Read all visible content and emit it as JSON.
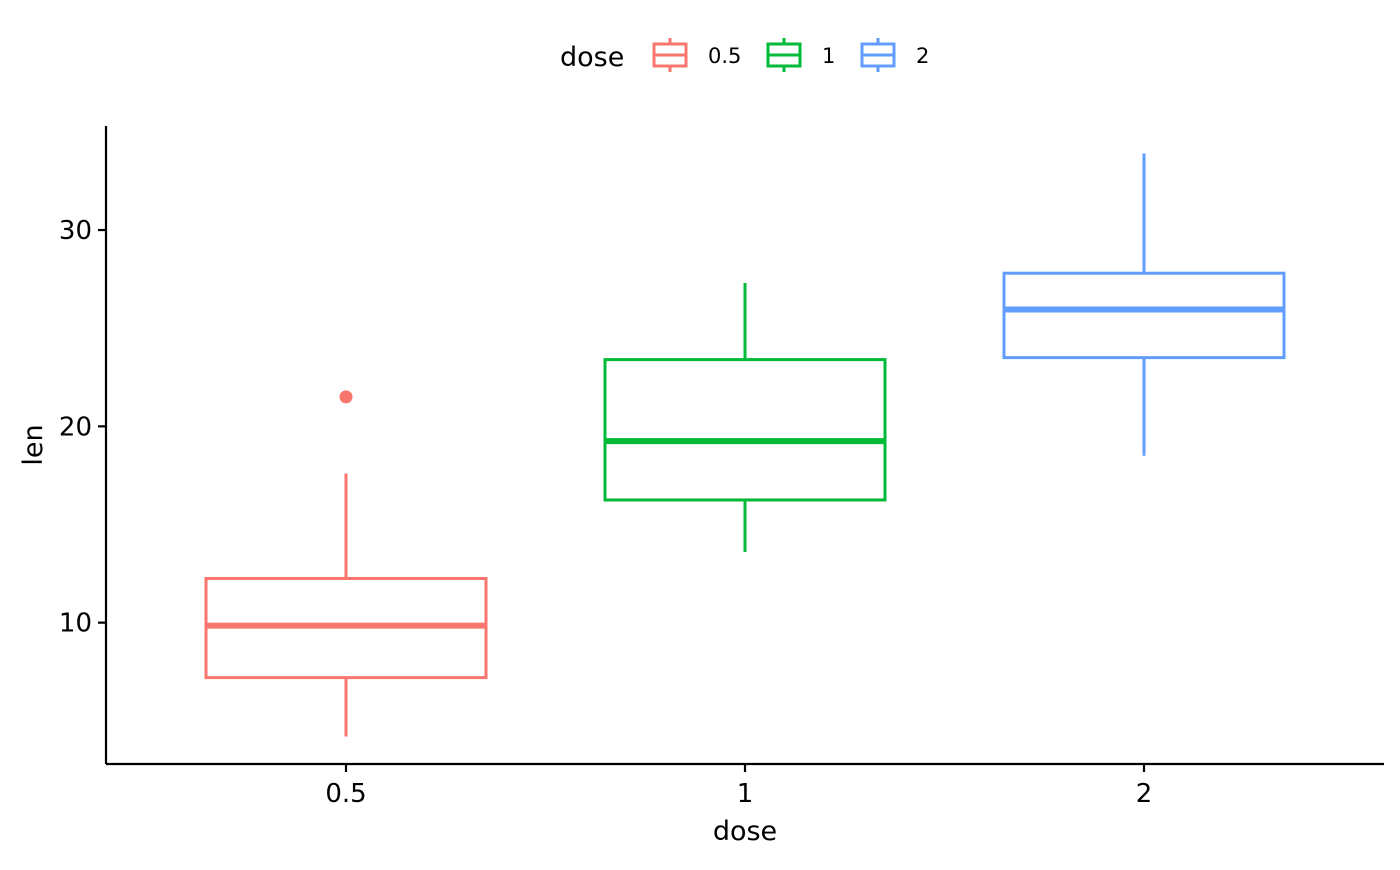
{
  "chart_data": {
    "type": "box",
    "title": "",
    "xlabel": "dose",
    "ylabel": "len",
    "categories": [
      "0.5",
      "1",
      "2"
    ],
    "ylim": [
      2.8,
      35.3
    ],
    "y_ticks": [
      10,
      20,
      30
    ],
    "grid": false,
    "legend": {
      "title": "dose",
      "position": "top",
      "entries": [
        "0.5",
        "1",
        "2"
      ]
    },
    "series": [
      {
        "name": "0.5",
        "color": "#F8766D",
        "whisker_low": 4.2,
        "q1": 7.2,
        "median": 9.85,
        "q3": 12.25,
        "whisker_high": 17.6,
        "outliers": [
          21.5
        ]
      },
      {
        "name": "1",
        "color": "#00BA38",
        "whisker_low": 13.6,
        "q1": 16.25,
        "median": 19.25,
        "q3": 23.4,
        "whisker_high": 27.3,
        "outliers": []
      },
      {
        "name": "2",
        "color": "#619CFF",
        "whisker_low": 18.5,
        "q1": 23.5,
        "median": 25.95,
        "q3": 27.8,
        "whisker_high": 33.9,
        "outliers": []
      }
    ]
  }
}
